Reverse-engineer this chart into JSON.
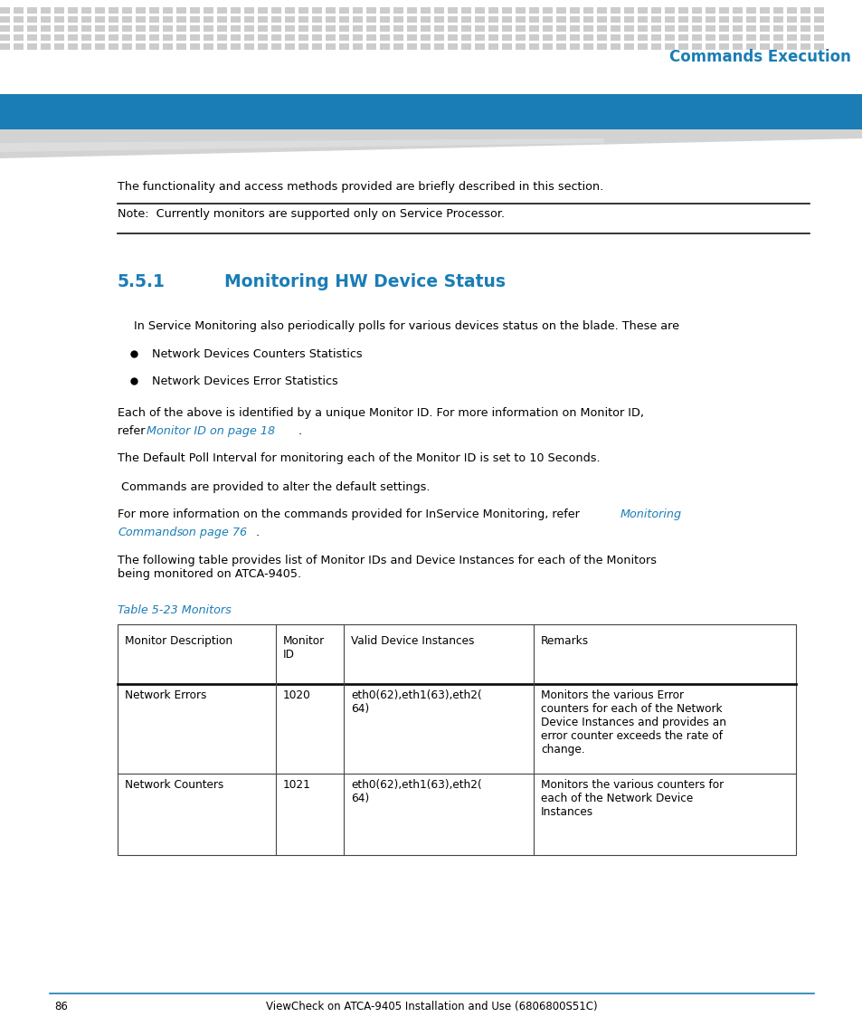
{
  "page_bg": "#ffffff",
  "header_dot_color": "#cccccc",
  "header_blue_bar_color": "#1a7db5",
  "header_title": "Commands Execution",
  "header_title_color": "#1a7db5",
  "section_number": "5.5.1",
  "section_title": "Monitoring HW Device Status",
  "section_color": "#1a7db5",
  "body_text_color": "#000000",
  "link_color": "#1a7db5",
  "intro_text": "The functionality and access methods provided are briefly described in this section.",
  "note_text": "Note:  Currently monitors are supported only on Service Processor.",
  "section_intro": "In Service Monitoring also periodically polls for various devices status on the blade. These are",
  "bullets": [
    "Network Devices Counters Statistics",
    "Network Devices Error Statistics"
  ],
  "para2": "The Default Poll Interval for monitoring each of the Monitor ID is set to 10 Seconds.",
  "para3": " Commands are provided to alter the default settings.",
  "para4_prefix": "For more information on the commands provided for InService Monitoring, refer ",
  "para5": "The following table provides list of Monitor IDs and Device Instances for each of the Monitors\nbeing monitored on ATCA-9405.",
  "table_caption": "Table 5-23 Monitors",
  "table_caption_color": "#1a7db5",
  "table_headers": [
    "Monitor Description",
    "Monitor\nID",
    "Valid Device Instances",
    "Remarks"
  ],
  "table_row1": [
    "Network Errors",
    "1020",
    "eth0(62),eth1(63),eth2(\n64)",
    "Monitors the various Error\ncounters for each of the Network\nDevice Instances and provides an\nerror counter exceeds the rate of\nchange."
  ],
  "table_row2": [
    "Network Counters",
    "1021",
    "eth0(62),eth1(63),eth2(\n64)",
    "Monitors the various counters for\neach of the Network Device\nInstances"
  ],
  "footer_line_color": "#1a7db5",
  "footer_page": "86",
  "footer_text": "ViewCheck on ATCA-9405 Installation and Use (6806800S51C)"
}
